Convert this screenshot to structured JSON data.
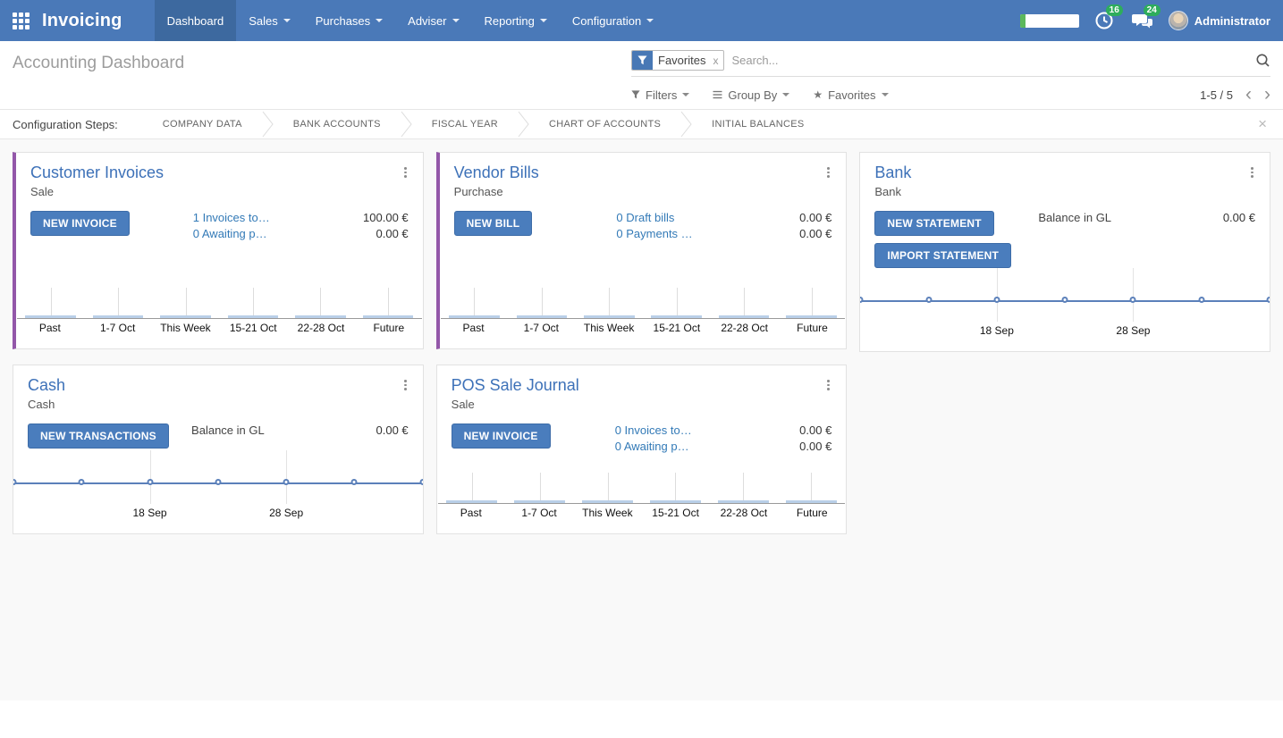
{
  "navbar": {
    "brand": "Invoicing",
    "menus": [
      {
        "label": "Dashboard"
      },
      {
        "label": "Sales"
      },
      {
        "label": "Purchases"
      },
      {
        "label": "Adviser"
      },
      {
        "label": "Reporting"
      },
      {
        "label": "Configuration"
      }
    ],
    "systray": {
      "progress_pct": 10,
      "timer_badge": "16",
      "chat_badge": "24",
      "user": "Administrator"
    }
  },
  "control_panel": {
    "breadcrumb": "Accounting Dashboard",
    "search": {
      "facet": "Favorites",
      "facet_remove": "x",
      "placeholder": "Search..."
    },
    "buttons": {
      "filters": "Filters",
      "group_by": "Group By",
      "favorites": "Favorites"
    },
    "pager": {
      "value": "1-5 / 5",
      "prev": "‹",
      "next": "›"
    }
  },
  "config_steps": {
    "label": "Configuration Steps:",
    "steps": [
      "COMPANY DATA",
      "BANK ACCOUNTS",
      "FISCAL YEAR",
      "CHART OF ACCOUNTS",
      "INITIAL BALANCES"
    ],
    "close": "×"
  },
  "colors": {
    "navbar_bg": "#4a79b8",
    "primary_button": "#4a7dbd",
    "accent_stripe": "#9357a9",
    "badge_green": "#2ead5c",
    "chart_line": "#5b80ba",
    "chart_bar": "#b9cfe8"
  },
  "cards": [
    {
      "title": "Customer Invoices",
      "subtitle": "Sale",
      "buttons": [
        "NEW INVOICE"
      ],
      "stats": [
        {
          "label": "1 Invoices to…",
          "amount": "100.00 €"
        },
        {
          "label": "0 Awaiting p…",
          "amount": "0.00 €"
        }
      ],
      "chart": {
        "type": "bar",
        "categories": [
          "Past",
          "1-7 Oct",
          "This Week",
          "15-21 Oct",
          "22-28 Oct",
          "Future"
        ],
        "values": [
          0,
          0,
          0,
          0,
          0,
          0
        ]
      }
    },
    {
      "title": "Vendor Bills",
      "subtitle": "Purchase",
      "buttons": [
        "NEW BILL"
      ],
      "stats": [
        {
          "label": "0 Draft bills",
          "amount": "0.00 €"
        },
        {
          "label": "0 Payments …",
          "amount": "0.00 €"
        }
      ],
      "chart": {
        "type": "bar",
        "categories": [
          "Past",
          "1-7 Oct",
          "This Week",
          "15-21 Oct",
          "22-28 Oct",
          "Future"
        ],
        "values": [
          0,
          0,
          0,
          0,
          0,
          0
        ]
      }
    },
    {
      "title": "Bank",
      "subtitle": "Bank",
      "buttons": [
        "NEW STATEMENT",
        "IMPORT STATEMENT"
      ],
      "stats": [
        {
          "label": "Balance in GL",
          "amount": "0.00 €"
        }
      ],
      "chart": {
        "type": "line",
        "labels": [
          "18 Sep",
          "28 Sep"
        ],
        "values": [
          0,
          0,
          0,
          0,
          0,
          0,
          0
        ]
      }
    },
    {
      "title": "Cash",
      "subtitle": "Cash",
      "buttons": [
        "NEW TRANSACTIONS"
      ],
      "stats": [
        {
          "label": "Balance in GL",
          "amount": "0.00 €"
        }
      ],
      "chart": {
        "type": "line",
        "labels": [
          "18 Sep",
          "28 Sep"
        ],
        "values": [
          0,
          0,
          0,
          0,
          0,
          0,
          0
        ]
      }
    },
    {
      "title": "POS Sale Journal",
      "subtitle": "Sale",
      "buttons": [
        "NEW INVOICE"
      ],
      "stats": [
        {
          "label": "0 Invoices to…",
          "amount": "0.00 €"
        },
        {
          "label": "0 Awaiting p…",
          "amount": "0.00 €"
        }
      ],
      "chart": {
        "type": "bar",
        "categories": [
          "Past",
          "1-7 Oct",
          "This Week",
          "15-21 Oct",
          "22-28 Oct",
          "Future"
        ],
        "values": [
          0,
          0,
          0,
          0,
          0,
          0
        ]
      }
    }
  ]
}
